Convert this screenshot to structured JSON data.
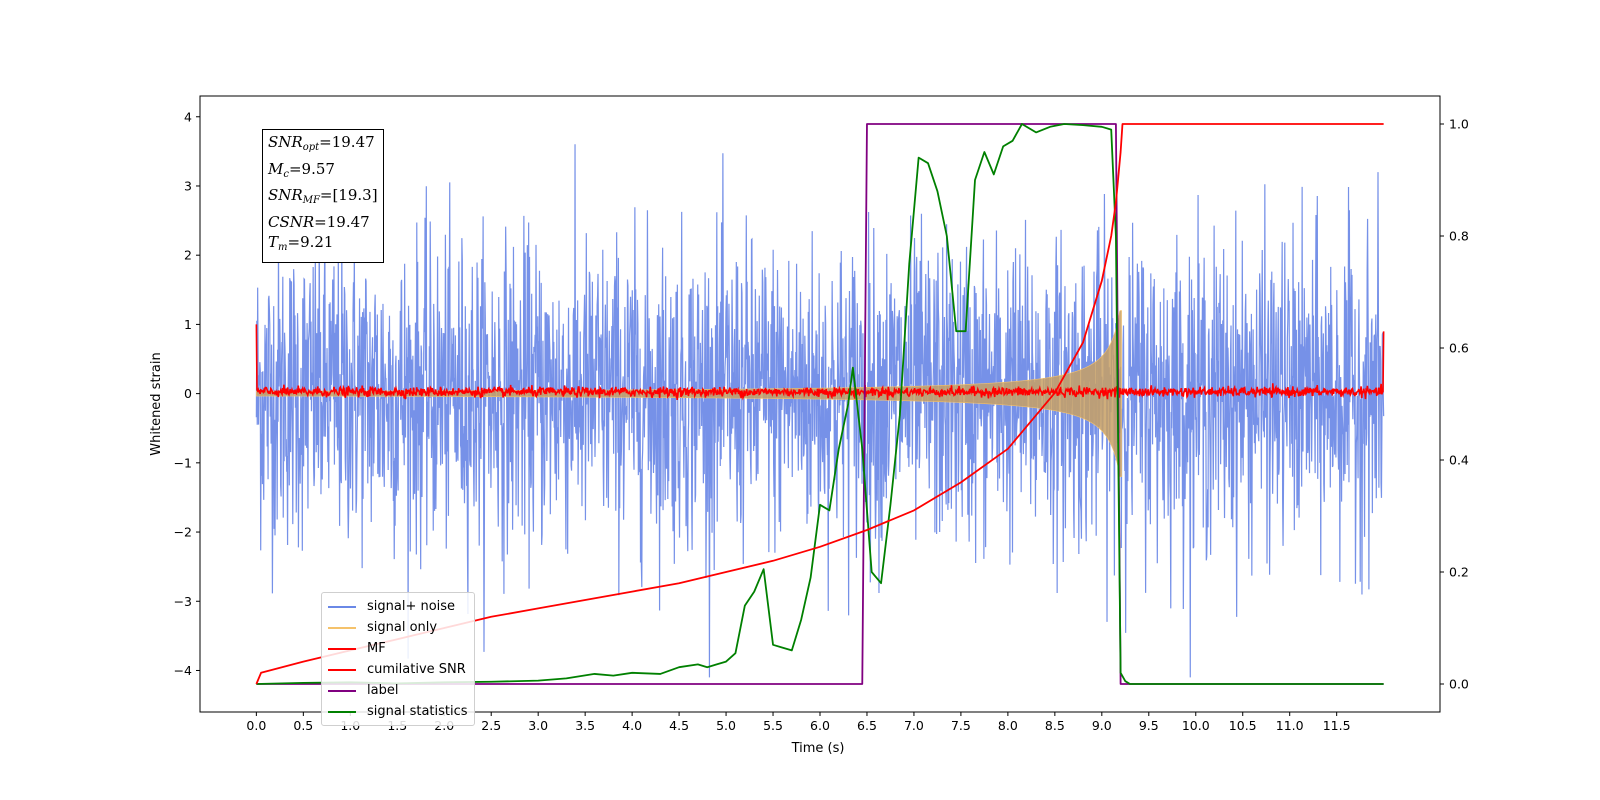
{
  "chart_data": {
    "type": "line",
    "xlabel": "Time (s)",
    "ylabel": "Whitened strain",
    "xlim": [
      -0.6,
      12.6
    ],
    "ylim_left": [
      -4.6,
      4.3
    ],
    "ylim_right": [
      -0.05,
      1.05
    ],
    "x_ticks": [
      "0.0",
      "0.5",
      "1.0",
      "1.5",
      "2.0",
      "2.5",
      "3.0",
      "3.5",
      "4.0",
      "4.5",
      "5.0",
      "5.5",
      "6.0",
      "6.5",
      "7.0",
      "7.5",
      "8.0",
      "8.5",
      "9.0",
      "9.5",
      "10.0",
      "10.5",
      "11.0",
      "11.5"
    ],
    "y_left_ticks": [
      "4",
      "3",
      "2",
      "1",
      "0",
      "−1",
      "−2",
      "−3",
      "−4"
    ],
    "y_right_ticks": [
      "1.0",
      "0.8",
      "0.6",
      "0.4",
      "0.2",
      "0.0"
    ],
    "legend_position": "lower-left",
    "colors": {
      "signal_noise": "#6a88e6",
      "signal_only": "#f5c26b",
      "mf": "#ff0000",
      "cumulative_snr": "#ff0000",
      "label": "#800080",
      "signal_statistics": "#008000"
    },
    "series": [
      {
        "name": "signal+ noise",
        "axis": "left",
        "kind": "noise",
        "x_range": [
          0.0,
          12.0
        ],
        "y_typical": [
          -2.0,
          2.0
        ],
        "y_peak": [
          -4.1,
          3.7
        ]
      },
      {
        "name": "signal only",
        "axis": "left",
        "kind": "chirp",
        "x_range": [
          0.0,
          9.21
        ],
        "amplitude_end": 1.2
      },
      {
        "name": "MF",
        "axis": "left",
        "kind": "noise",
        "x_range": [
          0.0,
          12.0
        ],
        "y_typical": [
          -0.05,
          0.1
        ],
        "start_value": 1.0,
        "end_value": 0.9
      },
      {
        "name": "cumilative SNR",
        "axis": "right",
        "x": [
          0.0,
          0.05,
          0.5,
          1.0,
          1.5,
          2.0,
          2.5,
          3.0,
          3.5,
          4.0,
          4.5,
          5.0,
          5.5,
          6.0,
          6.5,
          7.0,
          7.5,
          8.0,
          8.5,
          8.8,
          9.0,
          9.1,
          9.15,
          9.2,
          9.22,
          12.0
        ],
        "y": [
          0.0,
          0.02,
          0.04,
          0.06,
          0.08,
          0.1,
          0.12,
          0.135,
          0.15,
          0.165,
          0.18,
          0.2,
          0.22,
          0.245,
          0.275,
          0.31,
          0.36,
          0.42,
          0.52,
          0.61,
          0.72,
          0.8,
          0.86,
          0.95,
          1.0,
          1.0
        ]
      },
      {
        "name": "label",
        "axis": "right",
        "x": [
          0.0,
          6.45,
          6.5,
          9.15,
          9.2,
          12.0
        ],
        "y": [
          0.0,
          0.0,
          1.0,
          1.0,
          0.0,
          0.0
        ]
      },
      {
        "name": "signal statistics",
        "axis": "right",
        "x": [
          0.0,
          0.5,
          1.0,
          1.5,
          2.0,
          2.5,
          3.0,
          3.3,
          3.6,
          3.8,
          4.0,
          4.3,
          4.5,
          4.7,
          4.8,
          4.9,
          5.0,
          5.1,
          5.2,
          5.3,
          5.4,
          5.5,
          5.6,
          5.7,
          5.8,
          5.9,
          6.0,
          6.1,
          6.2,
          6.3,
          6.35,
          6.45,
          6.55,
          6.65,
          6.75,
          6.85,
          6.95,
          7.05,
          7.15,
          7.25,
          7.35,
          7.45,
          7.55,
          7.65,
          7.75,
          7.85,
          7.95,
          8.05,
          8.15,
          8.3,
          8.45,
          8.6,
          8.8,
          9.0,
          9.1,
          9.15,
          9.2,
          9.25,
          9.3,
          10.0,
          11.0,
          12.0
        ],
        "y": [
          0.0,
          0.002,
          0.003,
          0.001,
          0.003,
          0.004,
          0.006,
          0.01,
          0.018,
          0.015,
          0.02,
          0.018,
          0.03,
          0.035,
          0.03,
          0.035,
          0.04,
          0.055,
          0.14,
          0.165,
          0.205,
          0.07,
          0.065,
          0.06,
          0.115,
          0.19,
          0.32,
          0.31,
          0.42,
          0.5,
          0.565,
          0.42,
          0.2,
          0.18,
          0.32,
          0.48,
          0.75,
          0.94,
          0.93,
          0.88,
          0.8,
          0.63,
          0.63,
          0.9,
          0.95,
          0.91,
          0.96,
          0.97,
          1.0,
          0.985,
          0.995,
          1.0,
          0.998,
          0.995,
          0.99,
          0.8,
          0.02,
          0.005,
          0.0,
          0.0,
          0.0,
          0.0
        ]
      }
    ]
  },
  "annotation": {
    "snr_opt_value": "=19.47",
    "mc_value": "=9.57",
    "snr_mf_value": "=[19.3]",
    "csnr_value": "=19.47",
    "tm_value": "=9.21"
  },
  "legend": {
    "items": [
      {
        "label": "signal+ noise",
        "color": "#6a88e6"
      },
      {
        "label": "signal only",
        "color": "#f5c26b"
      },
      {
        "label": "MF",
        "color": "#ff0000"
      },
      {
        "label": "cumilative SNR",
        "color": "#ff0000"
      },
      {
        "label": "label",
        "color": "#800080"
      },
      {
        "label": "signal statistics",
        "color": "#008000"
      }
    ]
  }
}
